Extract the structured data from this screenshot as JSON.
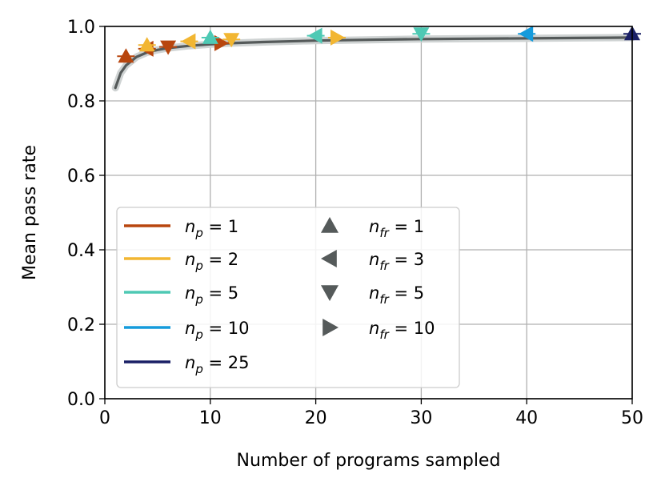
{
  "chart_data": {
    "type": "line",
    "title": "",
    "xlabel": "Number of programs sampled",
    "ylabel": "Mean pass rate",
    "xlim": [
      0,
      50
    ],
    "ylim": [
      0.0,
      1.0
    ],
    "x_ticks": [
      "0",
      "10",
      "20",
      "30",
      "40",
      "50"
    ],
    "y_ticks": [
      "0.0",
      "0.2",
      "0.4",
      "0.6",
      "0.8",
      "1.0"
    ],
    "grid": true,
    "legend_placement": "lower-left",
    "curve": {
      "x": [
        1,
        1.5,
        2,
        3,
        4,
        5,
        6,
        8,
        10,
        12,
        15,
        20,
        25,
        30,
        35,
        40,
        45,
        50
      ],
      "y": [
        0.835,
        0.875,
        0.895,
        0.918,
        0.93,
        0.937,
        0.942,
        0.948,
        0.952,
        0.955,
        0.958,
        0.962,
        0.964,
        0.966,
        0.967,
        0.968,
        0.969,
        0.97
      ],
      "color": "#555a5a"
    },
    "legend_np": [
      {
        "label_base": "n",
        "label_sub": "p",
        "label_value": " = 1",
        "color": "#b8460e"
      },
      {
        "label_base": "n",
        "label_sub": "p",
        "label_value": " = 2",
        "color": "#f2b632"
      },
      {
        "label_base": "n",
        "label_sub": "p",
        "label_value": " = 5",
        "color": "#4ec9b4"
      },
      {
        "label_base": "n",
        "label_sub": "p",
        "label_value": " = 10",
        "color": "#159bdc"
      },
      {
        "label_base": "n",
        "label_sub": "p",
        "label_value": " = 25",
        "color": "#1a2066"
      }
    ],
    "legend_nfr": [
      {
        "label_base": "n",
        "label_sub": "fr",
        "label_value": " = 1",
        "marker": "triangle-up"
      },
      {
        "label_base": "n",
        "label_sub": "fr",
        "label_value": " = 3",
        "marker": "triangle-left"
      },
      {
        "label_base": "n",
        "label_sub": "fr",
        "label_value": " = 5",
        "marker": "triangle-down"
      },
      {
        "label_base": "n",
        "label_sub": "fr",
        "label_value": " = 10",
        "marker": "triangle-right"
      }
    ],
    "points": [
      {
        "x": 2,
        "y": 0.92,
        "np": 1,
        "nfr": 1,
        "color": "#b8460e",
        "marker": "triangle-up"
      },
      {
        "x": 4,
        "y": 0.94,
        "np": 1,
        "nfr": 3,
        "color": "#b8460e",
        "marker": "triangle-left"
      },
      {
        "x": 6,
        "y": 0.945,
        "np": 1,
        "nfr": 5,
        "color": "#b8460e",
        "marker": "triangle-down"
      },
      {
        "x": 11,
        "y": 0.955,
        "np": 1,
        "nfr": 10,
        "color": "#b8460e",
        "marker": "triangle-right"
      },
      {
        "x": 4,
        "y": 0.95,
        "np": 2,
        "nfr": 1,
        "color": "#f2b632",
        "marker": "triangle-up"
      },
      {
        "x": 8,
        "y": 0.96,
        "np": 2,
        "nfr": 3,
        "color": "#f2b632",
        "marker": "triangle-left"
      },
      {
        "x": 12,
        "y": 0.965,
        "np": 2,
        "nfr": 5,
        "color": "#f2b632",
        "marker": "triangle-down"
      },
      {
        "x": 22,
        "y": 0.97,
        "np": 2,
        "nfr": 10,
        "color": "#f2b632",
        "marker": "triangle-right"
      },
      {
        "x": 10,
        "y": 0.97,
        "np": 5,
        "nfr": 1,
        "color": "#4ec9b4",
        "marker": "triangle-up"
      },
      {
        "x": 20,
        "y": 0.975,
        "np": 5,
        "nfr": 3,
        "color": "#4ec9b4",
        "marker": "triangle-left"
      },
      {
        "x": 30,
        "y": 0.98,
        "np": 5,
        "nfr": 5,
        "color": "#4ec9b4",
        "marker": "triangle-down"
      },
      {
        "x": 40,
        "y": 0.98,
        "np": 10,
        "nfr": 3,
        "color": "#159bdc",
        "marker": "triangle-left"
      },
      {
        "x": 50,
        "y": 0.98,
        "np": 25,
        "nfr": 1,
        "color": "#1a2066",
        "marker": "triangle-up"
      }
    ]
  }
}
